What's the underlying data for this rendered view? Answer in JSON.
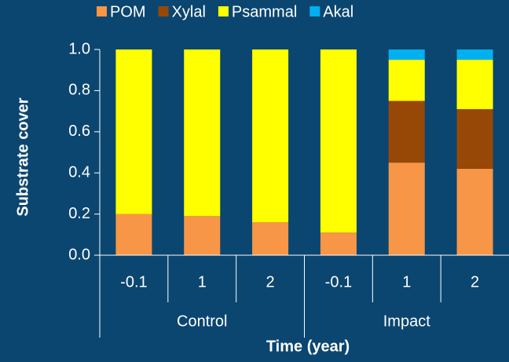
{
  "chart_data": {
    "type": "stacked_bar",
    "y_label": "Substrate cover",
    "x_label": "Time (year)",
    "categories": [
      "-0.1",
      "1",
      "2",
      "-0.1",
      "1",
      "2"
    ],
    "groups": [
      "Control",
      "Impact"
    ],
    "series": [
      {
        "name": "POM",
        "color": "#f79646",
        "values": [
          0.2,
          0.19,
          0.16,
          0.11,
          0.45,
          0.42
        ]
      },
      {
        "name": "Xylal",
        "color": "#974806",
        "values": [
          0,
          0,
          0,
          0,
          0.3,
          0.29
        ]
      },
      {
        "name": "Psammal",
        "color": "#ffff00",
        "values": [
          0.8,
          0.81,
          0.84,
          0.89,
          0.2,
          0.24
        ]
      },
      {
        "name": "Akal",
        "color": "#00b0f0",
        "values": [
          0,
          0,
          0,
          0,
          0.05,
          0.05
        ]
      }
    ],
    "ylim": [
      0,
      1
    ],
    "yticks": [
      {
        "value": 0,
        "label": "0.0"
      },
      0.2,
      0.4,
      0.6,
      0.8,
      {
        "value": 1,
        "label": "1.0"
      }
    ],
    "legend": "top"
  }
}
